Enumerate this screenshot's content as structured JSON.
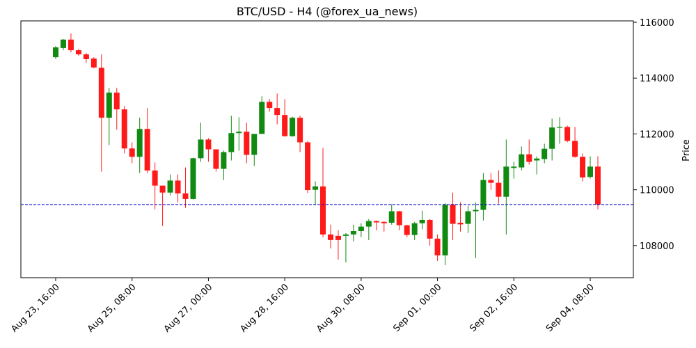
{
  "chart_data": {
    "type": "candlestick",
    "title": "BTC/USD - H4 (@forex_ua_news)",
    "y_label": "Price",
    "up_color": "#118a11",
    "down_color": "#ff1a1a",
    "hline": {
      "value": 109470,
      "color": "#0000cc"
    },
    "ylim": [
      106850,
      116050
    ],
    "yticks": [
      108000,
      110000,
      112000,
      114000,
      116000
    ],
    "categories": [
      "Aug 23, 16:00",
      null,
      null,
      null,
      null,
      null,
      null,
      null,
      null,
      null,
      "Aug 25, 08:00",
      null,
      null,
      null,
      null,
      null,
      null,
      null,
      null,
      null,
      "Aug 27, 00:00",
      null,
      null,
      null,
      null,
      null,
      null,
      null,
      null,
      null,
      "Aug 28, 16:00",
      null,
      null,
      null,
      null,
      null,
      null,
      null,
      null,
      null,
      "Aug 30, 08:00",
      null,
      null,
      null,
      null,
      null,
      null,
      null,
      null,
      null,
      "Sep 01, 00:00",
      null,
      null,
      null,
      null,
      null,
      null,
      null,
      null,
      null,
      "Sep 02, 16:00",
      null,
      null,
      null,
      null,
      null,
      null,
      null,
      null,
      null,
      "Sep 04, 08:00",
      null
    ],
    "open": [
      114750,
      115080,
      115380,
      115000,
      114850,
      114700,
      114370,
      112580,
      113480,
      112880,
      111480,
      111180,
      112180,
      110690,
      110150,
      109900,
      110330,
      109870,
      109670,
      111130,
      111800,
      111450,
      110750,
      111350,
      112030,
      112080,
      111250,
      112000,
      113150,
      112930,
      112680,
      111920,
      112580,
      111700,
      110000,
      110120,
      108400,
      108350,
      108350,
      108400,
      108520,
      108680,
      108880,
      108850,
      108820,
      109230,
      108730,
      108380,
      108800,
      108920,
      108250,
      107650,
      109470,
      108820,
      108780,
      109230,
      109280,
      110350,
      110250,
      109750,
      110780,
      110800,
      111270,
      111050,
      111100,
      111470,
      112220,
      112250,
      111750,
      111180,
      110460,
      110830
    ],
    "high": [
      115150,
      115400,
      115600,
      115050,
      114900,
      114750,
      114850,
      113650,
      113650,
      113000,
      111700,
      112580,
      112930,
      110980,
      110150,
      110550,
      110550,
      110800,
      111150,
      112400,
      111850,
      111450,
      111400,
      112650,
      112600,
      112400,
      112000,
      113350,
      113250,
      113450,
      113250,
      112620,
      112650,
      111750,
      110300,
      111500,
      108750,
      108550,
      108450,
      108750,
      108800,
      108950,
      108900,
      108870,
      109480,
      109250,
      108750,
      108850,
      109250,
      108950,
      108400,
      109520,
      109900,
      109550,
      109430,
      109550,
      110600,
      110600,
      110700,
      111800,
      111000,
      111550,
      111800,
      111200,
      111650,
      112550,
      112600,
      112300,
      112250,
      111300,
      111200,
      111200
    ],
    "low": [
      114680,
      115000,
      114920,
      114800,
      114550,
      114350,
      110650,
      111600,
      112150,
      111300,
      110950,
      110600,
      110600,
      109300,
      108700,
      109800,
      109550,
      109350,
      109650,
      111000,
      111000,
      110650,
      110350,
      111050,
      111400,
      110950,
      110850,
      112000,
      112800,
      112350,
      111900,
      111900,
      111350,
      109880,
      109450,
      108300,
      107900,
      107500,
      107400,
      108150,
      108300,
      108200,
      108550,
      108500,
      108750,
      108550,
      108300,
      108200,
      108580,
      108000,
      107450,
      107300,
      108200,
      108500,
      108450,
      107550,
      108900,
      110000,
      109500,
      108400,
      110400,
      110700,
      110900,
      110550,
      110950,
      111050,
      111650,
      111700,
      111150,
      110300,
      110400,
      109300
    ],
    "close": [
      115100,
      115380,
      115000,
      114850,
      114680,
      114380,
      112580,
      113480,
      112880,
      111480,
      111180,
      112180,
      110690,
      110150,
      109900,
      110330,
      109870,
      109670,
      111130,
      111800,
      111450,
      110750,
      111350,
      112030,
      112080,
      111250,
      112000,
      113150,
      112930,
      112680,
      111920,
      112580,
      111700,
      109990,
      110120,
      108400,
      108200,
      108200,
      108400,
      108520,
      108680,
      108880,
      108830,
      108800,
      109230,
      108730,
      108380,
      108800,
      108920,
      108250,
      107650,
      109470,
      108780,
      108760,
      109230,
      109280,
      110350,
      110250,
      109750,
      110830,
      110830,
      111270,
      111000,
      111120,
      111470,
      112230,
      112250,
      111750,
      111180,
      110440,
      110830,
      109470
    ]
  }
}
